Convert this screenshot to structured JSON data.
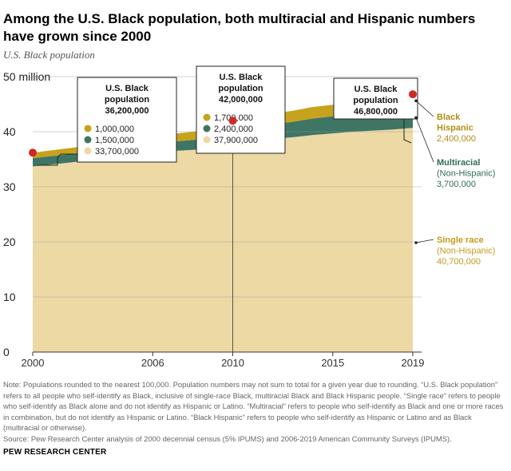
{
  "header": {
    "title": "Among the U.S. Black population, both multiracial and Hispanic numbers have grown since 2000",
    "subtitle": "U.S. Black population"
  },
  "colors": {
    "single": "#ecd9a4",
    "multi": "#3f7564",
    "hispanic": "#c7a21d",
    "total_dot": "#cf2a26"
  },
  "chart_data": {
    "type": "area",
    "stacked": true,
    "x": [
      2000,
      2006,
      2007,
      2008,
      2009,
      2010,
      2011,
      2012,
      2013,
      2014,
      2015,
      2016,
      2017,
      2018,
      2019
    ],
    "series": [
      {
        "name": "Single race",
        "values": [
          33.7,
          36.0,
          36.5,
          36.7,
          37.0,
          37.9,
          38.3,
          38.7,
          39.0,
          39.4,
          39.7,
          40.0,
          40.2,
          40.4,
          40.7
        ]
      },
      {
        "name": "Multiracial",
        "values": [
          1.5,
          1.6,
          1.7,
          1.8,
          2.0,
          2.4,
          2.5,
          2.7,
          2.8,
          3.0,
          3.1,
          3.3,
          3.4,
          3.5,
          3.7
        ]
      },
      {
        "name": "Black Hispanic",
        "values": [
          1.0,
          1.3,
          1.4,
          1.5,
          1.6,
          1.7,
          1.8,
          1.9,
          2.0,
          2.1,
          2.1,
          2.2,
          2.3,
          2.3,
          2.4
        ]
      }
    ],
    "ylim": [
      0,
      50
    ],
    "y_ticks": [
      {
        "value": 0,
        "label": "0"
      },
      {
        "value": 10,
        "label": "10"
      },
      {
        "value": 20,
        "label": "20"
      },
      {
        "value": 30,
        "label": "30"
      },
      {
        "value": 40,
        "label": "40"
      },
      {
        "value": 50,
        "label": "50 million"
      }
    ],
    "x_ticks": [
      {
        "value": 2000,
        "label": "2000"
      },
      {
        "value": 2006,
        "label": "2006"
      },
      {
        "value": 2010,
        "label": "2010"
      },
      {
        "value": 2015,
        "label": "2015"
      },
      {
        "value": 2019,
        "label": "2019"
      }
    ],
    "grid": "horizontal",
    "annotations": [
      {
        "year": 2000,
        "total": 36.2,
        "title_lines": [
          "U.S. Black",
          "population",
          "36,200,000"
        ],
        "values": [
          "1,000,000",
          "1,500,000",
          "33,700,000"
        ]
      },
      {
        "year": 2010,
        "total": 42.0,
        "title_lines": [
          "U.S. Black",
          "population",
          "42,000,000"
        ],
        "values": [
          "1,700,000",
          "2,400,000",
          "37,900,000"
        ]
      },
      {
        "year": 2019,
        "total": 46.8,
        "title_lines": [
          "U.S. Black",
          "population",
          "46,800,000"
        ],
        "values": []
      }
    ],
    "end_labels": [
      {
        "series": "Black Hispanic",
        "lines": [
          "Black",
          "Hispanic",
          "2,400,000"
        ]
      },
      {
        "series": "Multiracial",
        "lines": [
          "Multiracial",
          "(Non-Hispanic)",
          "3,700,000"
        ]
      },
      {
        "series": "Single race",
        "lines": [
          "Single race",
          "(Non-Hispanic)",
          "40,700,000"
        ]
      }
    ]
  },
  "footer": {
    "note": "Note: Populations rounded to the nearest 100,000. Population numbers may not sum to total for a given year due to rounding. “U.S. Black population” refers to all people who self-identify as Black, inclusive of single-race Black, multiracial Black and Black Hispanic people. “Single race” refers to people who self-identify as Black alone and do not identify as Hispanic or Latino. “Multiracial” refers to people who self-identify as Black and one or more races in combination, but do not identify as Hispanic or Latino. “Black Hispanic” refers to people who self-identify as Hispanic or Latino and as Black (multiracial or otherwise).",
    "source": "Source: Pew Research Center analysis of 2000 decennial census (5% IPUMS) and 2006-2019 American Community Surveys (IPUMS).",
    "credit": "PEW RESEARCH CENTER"
  }
}
